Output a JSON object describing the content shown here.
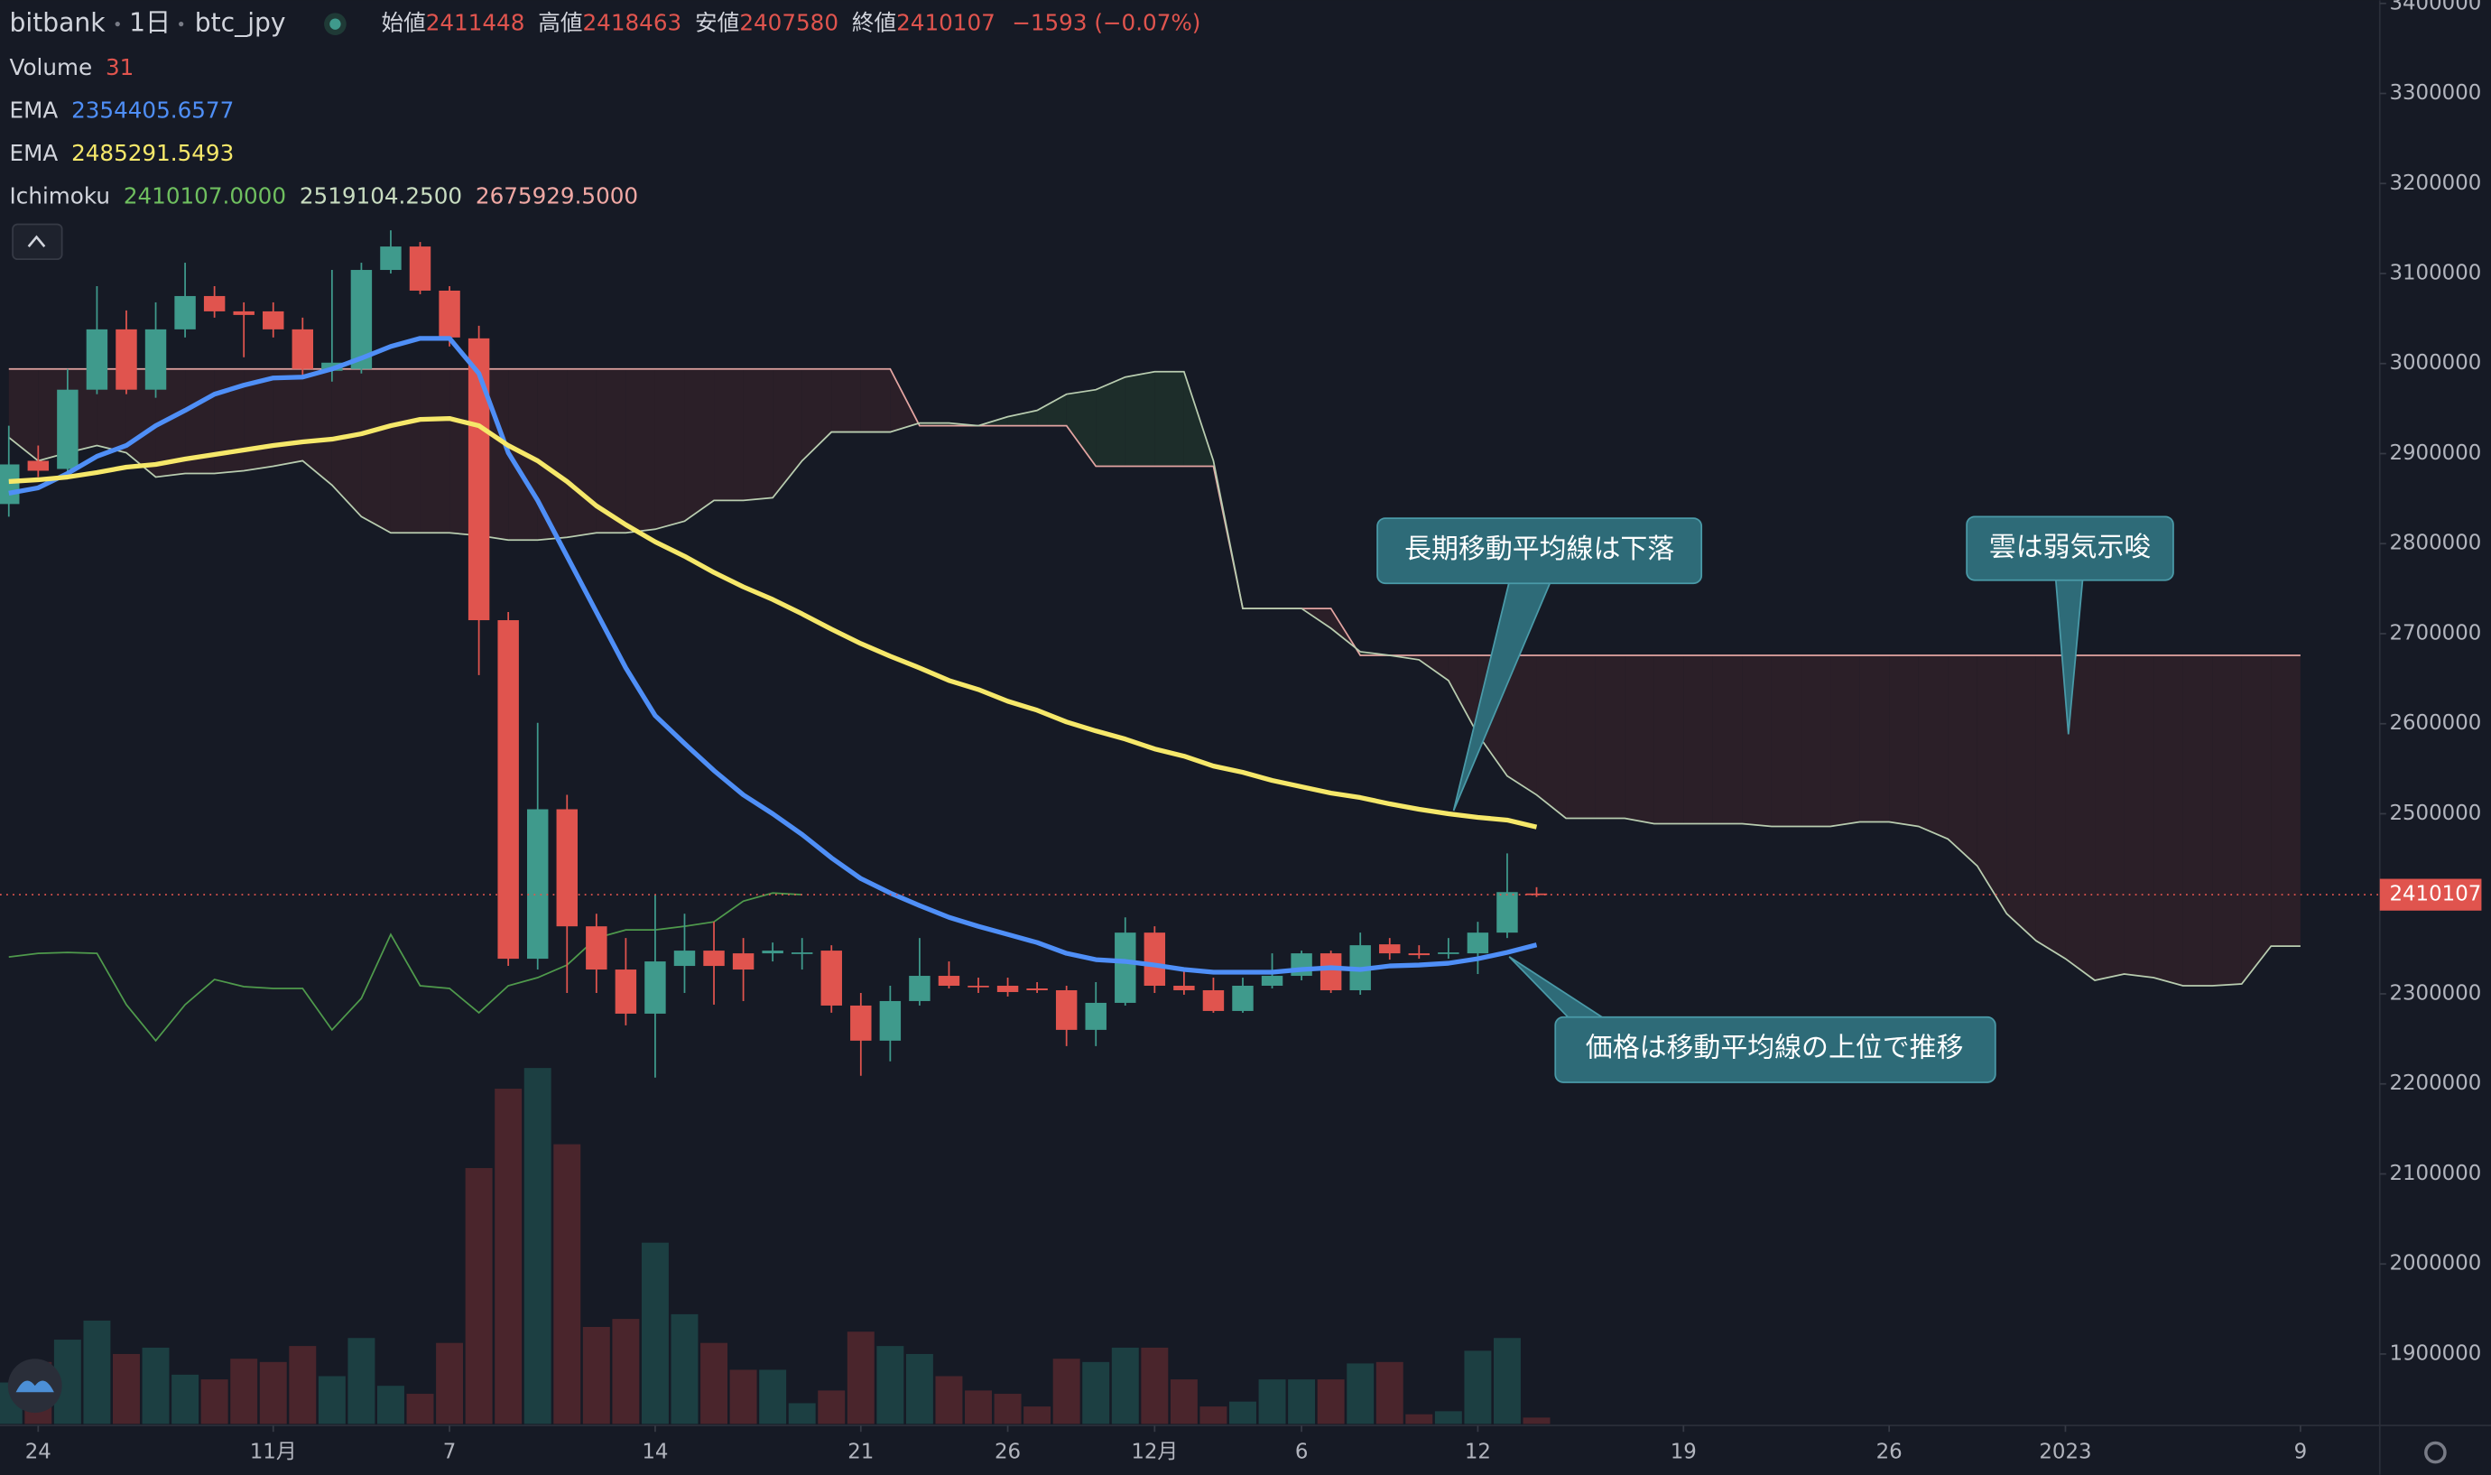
{
  "header": {
    "symbol": "bitbank",
    "interval": "1日",
    "pair": "btc_jpy",
    "open_label": "始値",
    "open": "2411448",
    "high_label": "高値",
    "high": "2418463",
    "low_label": "安値",
    "low": "2407580",
    "close_label": "終値",
    "close": "2410107",
    "change": "−1593 (−0.07%)",
    "volume_label": "Volume",
    "volume": "31",
    "ema1_label": "EMA",
    "ema1": "2354405.6577",
    "ema2_label": "EMA",
    "ema2": "2485291.5493",
    "ichimoku_label": "Ichimoku",
    "ichimoku": [
      "2410107.0000",
      "2519104.2500",
      "2675929.5000"
    ]
  },
  "chart_data": {
    "type": "candlestick",
    "x": [
      -1,
      0,
      1,
      2,
      3,
      4,
      5,
      6,
      7,
      8,
      9,
      10,
      11,
      12,
      13,
      14,
      15,
      16,
      17,
      18,
      19,
      20,
      21,
      22,
      23,
      24,
      25,
      26,
      27,
      28,
      29,
      30,
      31,
      32,
      33,
      34,
      35,
      36,
      37,
      38,
      39,
      40,
      41,
      42,
      43,
      44,
      45,
      46,
      47,
      48,
      49,
      50,
      51
    ],
    "open": [
      2844000,
      2892000,
      2883000,
      2971000,
      3038000,
      2971000,
      3038000,
      3075000,
      3058000,
      3058000,
      3038000,
      2992000,
      2994000,
      3104000,
      3130000,
      3081000,
      3028000,
      2715000,
      2339000,
      2505000,
      2375000,
      2327000,
      2278000,
      2331000,
      2348000,
      2345000,
      2345000,
      2345000,
      2348000,
      2287000,
      2248000,
      2292000,
      2320000,
      2309000,
      2309000,
      2306000,
      2304000,
      2260000,
      2290000,
      2368000,
      2309000,
      2304000,
      2281000,
      2309000,
      2320000,
      2345000,
      2304000,
      2355000,
      2345000,
      2345000,
      2345000,
      2368000,
      2411448
    ],
    "high": [
      2931000,
      2909000,
      2994000,
      3086000,
      3059000,
      3068000,
      3112000,
      3086000,
      3068000,
      3068000,
      3051000,
      3104000,
      3112000,
      3148000,
      3135000,
      3086000,
      3042000,
      2724000,
      2601000,
      2521000,
      2389000,
      2362000,
      2410000,
      2389000,
      2380000,
      2362000,
      2357000,
      2362000,
      2354000,
      2301000,
      2309000,
      2362000,
      2336000,
      2318000,
      2318000,
      2313000,
      2309000,
      2313000,
      2385000,
      2375000,
      2327000,
      2318000,
      2318000,
      2345000,
      2348000,
      2348000,
      2368000,
      2362000,
      2354000,
      2362000,
      2380000,
      2456000,
      2418463
    ],
    "low": [
      2830000,
      2874000,
      2874000,
      2966000,
      2966000,
      2962000,
      3029000,
      3051000,
      3007000,
      3029000,
      2984000,
      2980000,
      2989000,
      3100000,
      3077000,
      3019000,
      2654000,
      2331000,
      2327000,
      2301000,
      2301000,
      2265000,
      2207000,
      2301000,
      2288000,
      2292000,
      2336000,
      2327000,
      2279000,
      2209000,
      2225000,
      2287000,
      2306000,
      2301000,
      2297000,
      2301000,
      2242000,
      2242000,
      2287000,
      2301000,
      2299000,
      2279000,
      2279000,
      2306000,
      2315000,
      2301000,
      2299000,
      2338000,
      2339000,
      2339000,
      2322000,
      2362000,
      2407580
    ],
    "close": [
      2888000,
      2881000,
      2971000,
      3038000,
      2971000,
      3038000,
      3075000,
      3058000,
      3054000,
      3038000,
      2994000,
      3001000,
      3104000,
      3130000,
      3081000,
      3029000,
      2715000,
      2339000,
      2505000,
      2375000,
      2327000,
      2278000,
      2336000,
      2348000,
      2331000,
      2327000,
      2348000,
      2346000,
      2287000,
      2248000,
      2292000,
      2320000,
      2309000,
      2308000,
      2302000,
      2304000,
      2260000,
      2290000,
      2368000,
      2309000,
      2304000,
      2281000,
      2309000,
      2320000,
      2345000,
      2304000,
      2354000,
      2345000,
      2343000,
      2346000,
      2368000,
      2413000,
      2410107
    ],
    "up_color": "#3f9a8c",
    "down_color": "#e0544e",
    "volume": {
      "values": [
        202,
        302,
        411,
        504,
        341,
        372,
        240,
        217,
        318,
        302,
        380,
        233,
        419,
        186,
        147,
        395,
        1248,
        1635,
        1736,
        1364,
        473,
        512,
        884,
        535,
        395,
        264,
        264,
        101,
        163,
        450,
        380,
        341,
        233,
        163,
        147,
        85,
        318,
        302,
        372,
        372,
        217,
        85,
        109,
        217,
        217,
        217,
        295,
        302,
        47,
        62,
        357,
        419,
        31
      ],
      "ylim": [
        0,
        6944
      ],
      "up_color": "#1c3f42",
      "down_color": "#4a252c"
    },
    "ema": [
      {
        "color": "#4f8ff7",
        "values": [
          2856000,
          2862000,
          2878000,
          2897000,
          2909000,
          2931000,
          2948000,
          2966000,
          2976000,
          2984000,
          2985000,
          2994000,
          3006000,
          3019000,
          3028000,
          3028000,
          2989000,
          2901000,
          2848000,
          2786000,
          2724000,
          2662000,
          2609000,
          2578000,
          2548000,
          2521000,
          2500000,
          2477000,
          2451000,
          2428000,
          2412000,
          2398000,
          2385000,
          2375000,
          2366000,
          2357000,
          2345000,
          2338000,
          2336000,
          2332000,
          2327000,
          2324000,
          2324000,
          2324000,
          2327000,
          2329000,
          2327000,
          2331000,
          2332000,
          2334000,
          2339000,
          2346000,
          2354405.6577
        ]
      },
      {
        "color": "#f6e86a",
        "values": [
          2869000,
          2871000,
          2874000,
          2879000,
          2885000,
          2888000,
          2894000,
          2899000,
          2904000,
          2909000,
          2913000,
          2916000,
          2922000,
          2931000,
          2938000,
          2939000,
          2931000,
          2909000,
          2892000,
          2869000,
          2842000,
          2821000,
          2802000,
          2786000,
          2768000,
          2752000,
          2738000,
          2722000,
          2705000,
          2689000,
          2675000,
          2662000,
          2648000,
          2638000,
          2625000,
          2615000,
          2602000,
          2592000,
          2583000,
          2572000,
          2564000,
          2553000,
          2546000,
          2537000,
          2530000,
          2523000,
          2518000,
          2511000,
          2505000,
          2500000,
          2496000,
          2493000,
          2485291.5493
        ]
      }
    ],
    "cloud": {
      "x": [
        -1,
        0,
        1,
        2,
        3,
        4,
        5,
        6,
        7,
        8,
        9,
        10,
        11,
        12,
        13,
        14,
        15,
        16,
        17,
        18,
        19,
        20,
        21,
        22,
        23,
        24,
        25,
        26,
        27,
        28,
        29,
        30,
        31,
        32,
        33,
        34,
        35,
        36,
        37,
        38,
        39,
        40,
        41,
        42,
        43,
        44,
        45,
        46,
        47,
        48,
        49,
        50,
        51,
        52,
        53,
        54,
        55,
        56,
        57,
        58,
        59,
        60,
        61,
        62,
        63,
        64,
        65,
        66,
        67,
        68,
        69,
        70,
        71,
        72,
        73,
        74,
        75,
        76,
        77
      ],
      "span_a": [
        2918000,
        2892000,
        2901000,
        2909000,
        2901000,
        2874000,
        2878000,
        2878000,
        2881000,
        2886000,
        2892000,
        2865000,
        2830000,
        2812000,
        2812000,
        2812000,
        2809000,
        2804000,
        2804000,
        2807000,
        2812000,
        2812000,
        2816000,
        2825000,
        2848000,
        2848000,
        2851000,
        2892000,
        2924000,
        2924000,
        2924000,
        2934000,
        2934000,
        2931000,
        2941000,
        2948000,
        2966000,
        2971000,
        2985000,
        2991000,
        2991000,
        2892000,
        2728000,
        2728000,
        2728000,
        2706000,
        2680000,
        2676000,
        2671000,
        2648000,
        2588000,
        2542000,
        2521000,
        2495000,
        2495000,
        2495000,
        2489000,
        2489000,
        2489000,
        2489000,
        2486000,
        2486000,
        2486000,
        2491000,
        2491000,
        2486000,
        2472000,
        2442000,
        2389000,
        2359000,
        2339000,
        2315000,
        2322000,
        2318000,
        2309000,
        2309000,
        2311000,
        2353000,
        2353000
      ],
      "span_b": [
        2994000,
        2994000,
        2994000,
        2994000,
        2994000,
        2994000,
        2994000,
        2994000,
        2994000,
        2994000,
        2994000,
        2994000,
        2994000,
        2994000,
        2994000,
        2994000,
        2994000,
        2994000,
        2994000,
        2994000,
        2994000,
        2994000,
        2994000,
        2994000,
        2994000,
        2994000,
        2994000,
        2994000,
        2994000,
        2994000,
        2994000,
        2931000,
        2931000,
        2931000,
        2931000,
        2931000,
        2931000,
        2886000,
        2886000,
        2886000,
        2886000,
        2886000,
        2728000,
        2728000,
        2728000,
        2728000,
        2675929.5,
        2675929.5,
        2675929.5,
        2675929.5,
        2675929.5,
        2675929.5,
        2675929.5,
        2675929.5,
        2675929.5,
        2675929.5,
        2675929.5,
        2675929.5,
        2675929.5,
        2675929.5,
        2675929.5,
        2675929.5,
        2675929.5,
        2675929.5,
        2675929.5,
        2675929.5,
        2675929.5,
        2675929.5,
        2675929.5,
        2675929.5,
        2675929.5,
        2675929.5,
        2675929.5,
        2675929.5,
        2675929.5,
        2675929.5,
        2675929.5,
        2675929.5,
        2675929.5
      ],
      "span_a_color": "#b9cdb0",
      "span_b_color": "#e3a5a2",
      "up_color": "#1d2d2a",
      "down_color": "#2b1f28"
    },
    "lagging": {
      "color": "#4f9a4c",
      "x": [
        -1,
        0,
        1,
        2,
        3,
        4,
        5,
        6,
        7,
        8,
        9,
        10,
        11,
        12,
        13,
        14,
        15,
        16,
        17,
        18,
        19,
        20,
        21,
        22,
        23,
        24,
        25,
        26
      ],
      "values": [
        2341000,
        2345000,
        2346000,
        2345000,
        2288000,
        2248000,
        2288000,
        2316000,
        2308000,
        2306000,
        2306000,
        2260000,
        2295000,
        2366000,
        2309000,
        2306000,
        2279000,
        2309000,
        2318000,
        2332000,
        2362000,
        2371000,
        2371000,
        2375000,
        2380000,
        2403000,
        2412000,
        2410107
      ]
    },
    "last_price": 2410107,
    "last_price_color": "#e0544e",
    "xlim": [
      -1.3,
      79.7
    ],
    "xticks": [
      {
        "value": 0,
        "label": "24"
      },
      {
        "value": 8,
        "label": "11月"
      },
      {
        "value": 14,
        "label": "7"
      },
      {
        "value": 21,
        "label": "14"
      },
      {
        "value": 28,
        "label": "21"
      },
      {
        "value": 33,
        "label": "26"
      },
      {
        "value": 38,
        "label": "12月"
      },
      {
        "value": 43,
        "label": "6"
      },
      {
        "value": 49,
        "label": "12"
      },
      {
        "value": 56,
        "label": "19"
      },
      {
        "value": 63,
        "label": "26"
      },
      {
        "value": 69,
        "label": "2023"
      },
      {
        "value": 77,
        "label": "9"
      }
    ],
    "ylim": [
      1822353,
      3403529
    ],
    "yticks": [
      1900000,
      2000000,
      2100000,
      2200000,
      2300000,
      2400000,
      2500000,
      2600000,
      2700000,
      2800000,
      2900000,
      3000000,
      3100000,
      3200000,
      3300000,
      3400000
    ],
    "grid": false,
    "annotations": [
      "長期移動平均線は下落",
      "雲は弱気示唆",
      "価格は移動平均線の上位で推移"
    ]
  }
}
